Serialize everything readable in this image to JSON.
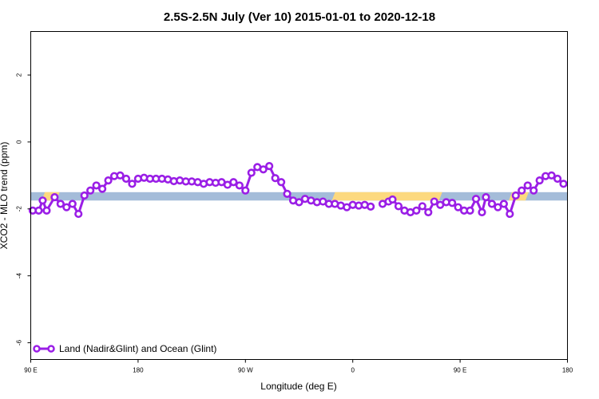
{
  "chart_data": {
    "type": "line",
    "title": "2.5S-2.5N July (Ver 10)   2015-01-01 to 2020-12-18",
    "xlabel": "Longitude (deg E)",
    "ylabel": "XCO2 - MLO trend (ppm)",
    "xlim": [
      -90,
      180
    ],
    "ylim": [
      -6.5,
      3.3
    ],
    "x_ticks": [
      {
        "value": -90,
        "label": "90 E"
      },
      {
        "value": -36,
        "label": "180"
      },
      {
        "value": 18,
        "label": "90 W"
      },
      {
        "value": 72,
        "label": "0"
      },
      {
        "value": 126,
        "label": "90 E"
      },
      {
        "value": 180,
        "label": "180"
      }
    ],
    "y_ticks": [
      {
        "value": 2,
        "label": "2"
      },
      {
        "value": 0,
        "label": "0"
      },
      {
        "value": -2,
        "label": "-2"
      },
      {
        "value": -4,
        "label": "-4"
      },
      {
        "value": -6,
        "label": "-6"
      }
    ],
    "surface_band": {
      "y_range": [
        -1.75,
        -1.5
      ],
      "colors": {
        "ocean": "#a4bcd9",
        "land": "#fcd97f"
      },
      "land_segments": [
        [
          -84.5,
          -75.5
        ],
        [
          61.5,
          117.0
        ],
        [
          150.5,
          160.5
        ]
      ]
    },
    "legend": {
      "position": "bottom-left",
      "entries": [
        {
          "label": "Land (Nadir&Glint) and Ocean (Glint)"
        }
      ]
    },
    "series": [
      {
        "name": "Land (Nadir&Glint) and Ocean (Glint)",
        "color": "#9a1ee6",
        "segments": [
          {
            "x": [
              -89,
              -86,
              -84,
              -82,
              -78,
              -75,
              -72,
              -69,
              -66,
              -63,
              -60,
              -57,
              -54,
              -51,
              -48,
              -45,
              -42,
              -39,
              -36,
              -33,
              -30,
              -27,
              -24,
              -21,
              -18,
              -15,
              -12,
              -9,
              -6,
              -3,
              0,
              3,
              6,
              9,
              12,
              15,
              18,
              21,
              24,
              27,
              30,
              33,
              36,
              39,
              42,
              45,
              48,
              51,
              54,
              57,
              60,
              63,
              66,
              69,
              72,
              75,
              78,
              81
            ],
            "y": [
              -2.05,
              -2.05,
              -1.75,
              -2.05,
              -1.65,
              -1.85,
              -1.95,
              -1.85,
              -2.15,
              -1.6,
              -1.45,
              -1.3,
              -1.4,
              -1.15,
              -1.02,
              -1.0,
              -1.1,
              -1.25,
              -1.1,
              -1.07,
              -1.1,
              -1.1,
              -1.1,
              -1.12,
              -1.17,
              -1.15,
              -1.18,
              -1.18,
              -1.2,
              -1.25,
              -1.2,
              -1.22,
              -1.2,
              -1.28,
              -1.2,
              -1.3,
              -1.45,
              -0.92,
              -0.75,
              -0.82,
              -0.72,
              -1.08,
              -1.2,
              -1.55,
              -1.75,
              -1.8,
              -1.7,
              -1.75,
              -1.8,
              -1.78,
              -1.85,
              -1.85,
              -1.9,
              -1.95,
              -1.88,
              -1.9,
              -1.88,
              -1.93
            ]
          },
          {
            "x": [
              87,
              90,
              92,
              95,
              98,
              101,
              104,
              107,
              110,
              113,
              116,
              119,
              122,
              125,
              128,
              131,
              134,
              137,
              139,
              142,
              145,
              148,
              151,
              154,
              157,
              160,
              163,
              166,
              169,
              172,
              175,
              178
            ],
            "y": [
              -1.85,
              -1.78,
              -1.72,
              -1.92,
              -2.05,
              -2.1,
              -2.05,
              -1.92,
              -2.1,
              -1.78,
              -1.88,
              -1.8,
              -1.82,
              -1.95,
              -2.05,
              -2.05,
              -1.7,
              -2.1,
              -1.65,
              -1.85,
              -1.95,
              -1.85,
              -2.15,
              -1.6,
              -1.45,
              -1.3,
              -1.45,
              -1.15,
              -1.02,
              -1.0,
              -1.1,
              -1.25
            ]
          }
        ]
      }
    ]
  }
}
